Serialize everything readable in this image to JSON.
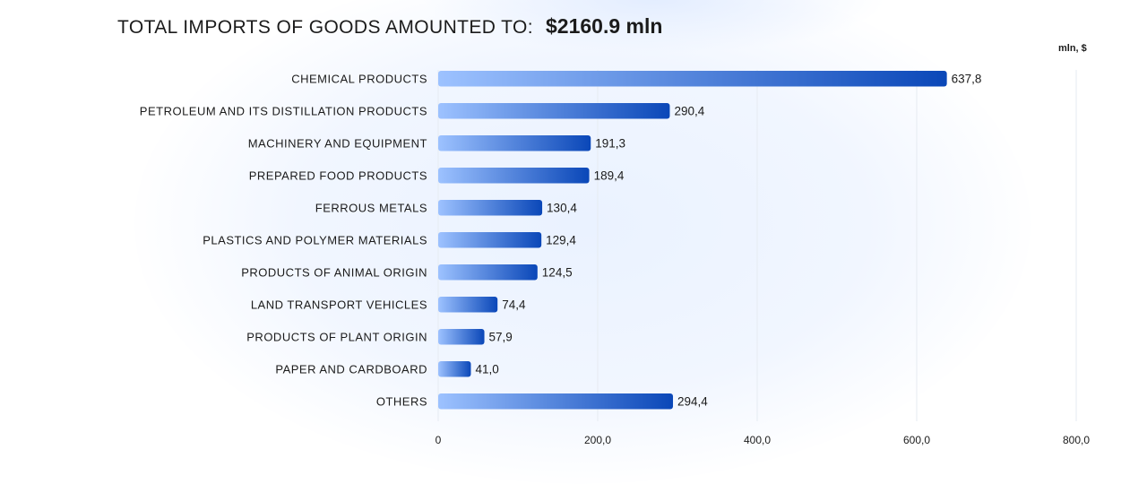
{
  "header": {
    "title_text": "TOTAL IMPORTS OF GOODS AMOUNTED TO:",
    "total": "$2160.9 mln"
  },
  "chart_data": {
    "type": "bar",
    "orientation": "horizontal",
    "unit_label": "mln, $",
    "categories": [
      "CHEMICAL PRODUCTS",
      "PETROLEUM AND ITS DISTILLATION PRODUCTS",
      "MACHINERY AND EQUIPMENT",
      "PREPARED FOOD PRODUCTS",
      "FERROUS METALS",
      "PLASTICS AND POLYMER MATERIALS",
      "PRODUCTS OF ANIMAL ORIGIN",
      "LAND TRANSPORT VEHICLES",
      "PRODUCTS OF PLANT ORIGIN",
      "PAPER AND CARDBOARD",
      "OTHERS"
    ],
    "values": [
      637.8,
      290.4,
      191.3,
      189.4,
      130.4,
      129.4,
      124.5,
      74.4,
      57.9,
      41.0,
      294.4
    ],
    "value_labels": [
      "637,8",
      "290,4",
      "191,3",
      "189,4",
      "130,4",
      "129,4",
      "124,5",
      "74,4",
      "57,9",
      "41,0",
      "294,4"
    ],
    "xlim": [
      0,
      800
    ],
    "xticks": [
      0,
      200,
      400,
      600,
      800
    ],
    "xtick_labels": [
      "0",
      "200,0",
      "400,0",
      "600,0",
      "800,0"
    ],
    "grid": true,
    "colors": {
      "bar_start": "#9dc2ff",
      "bar_end": "#0a47b8",
      "grid": "#e6ebf2",
      "text": "#1b1b1b"
    }
  }
}
